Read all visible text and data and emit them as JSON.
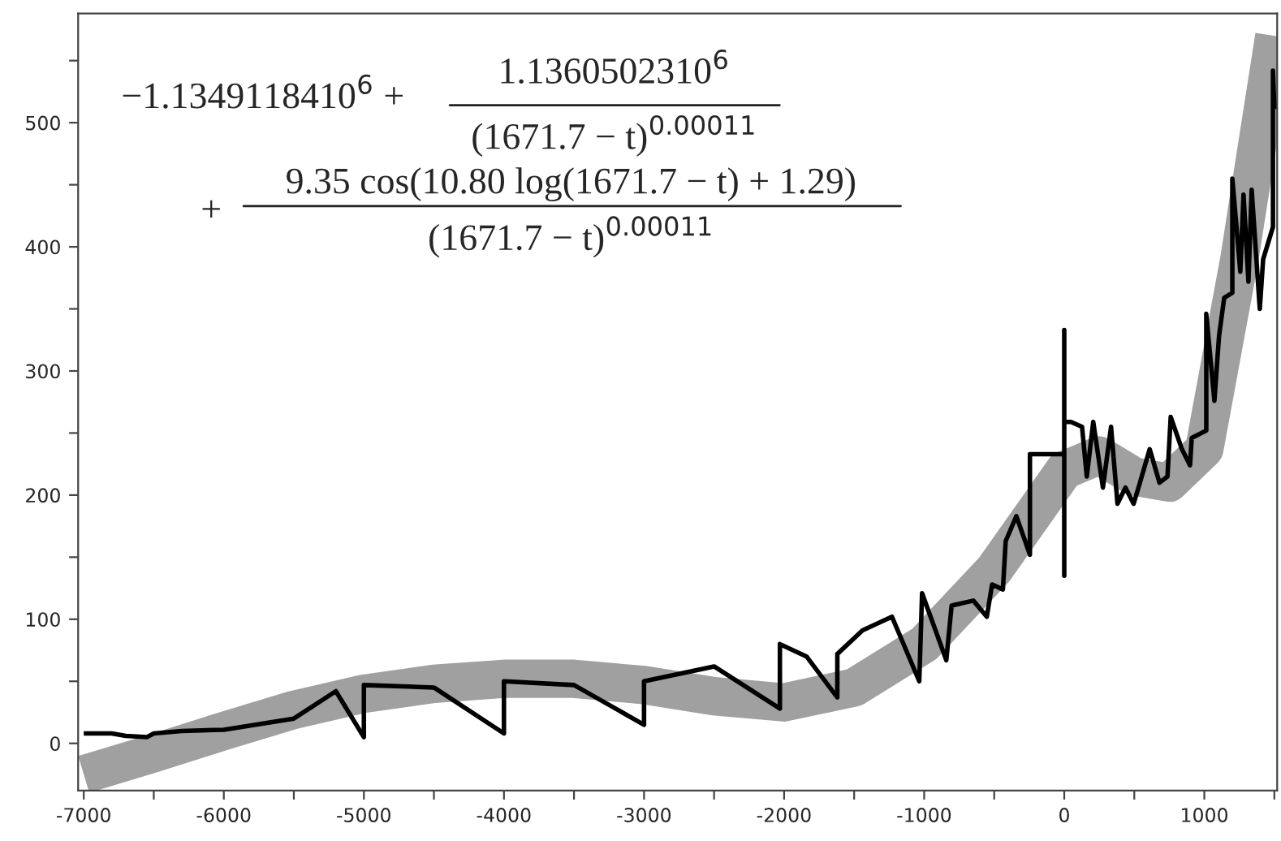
{
  "chart_data": {
    "type": "line",
    "series": [
      {
        "color": "#a0a0a0",
        "x": [
          -7000,
          -6500,
          -6000,
          -5500,
          -5000,
          -4500,
          -4000,
          -3500,
          -3000,
          -2500,
          -2000,
          -1500,
          -1000,
          -500,
          0,
          250,
          500,
          750,
          1000,
          1250,
          1500
        ],
        "values": [
          -25,
          -8,
          10,
          27,
          40,
          48,
          52,
          52,
          47,
          38,
          33,
          45,
          80,
          140,
          220,
          232,
          215,
          210,
          237,
          390,
          570
        ]
      },
      {
        "color": "#000000",
        "x": [
          -7000,
          -6800,
          -6700,
          -6550,
          -6500,
          -6300,
          -6000,
          -5500,
          -5200,
          -5000,
          -5000,
          -4500,
          -4000,
          -4000,
          -3500,
          -3000,
          -3000,
          -2500,
          -2030,
          -2030,
          -1840,
          -1620,
          -1620,
          -1440,
          -1230,
          -1035,
          -1015,
          -842,
          -804,
          -649,
          -553,
          -515,
          -438,
          -418,
          -342,
          -245,
          -245,
          0,
          0,
          0,
          0,
          48,
          127,
          161,
          207,
          276,
          334,
          380,
          437,
          495,
          530,
          610,
          680,
          737,
          760,
          840,
          898,
          910,
          1014,
          1014,
          1072,
          1105,
          1142,
          1200,
          1200,
          1257,
          1280,
          1315,
          1338,
          1396,
          1420,
          1490,
          1490,
          1500
        ],
        "values": [
          8,
          8,
          6,
          5,
          8,
          10,
          11,
          20,
          42,
          5,
          47,
          45,
          8,
          50,
          47,
          15,
          50,
          62,
          28,
          80,
          70,
          37,
          72,
          91,
          102,
          50,
          121,
          67,
          111,
          115,
          102,
          128,
          124,
          163,
          183,
          152,
          233,
          233,
          333,
          135,
          259,
          259,
          255,
          215,
          259,
          206,
          255,
          193,
          206,
          193,
          206,
          237,
          210,
          215,
          263,
          237,
          224,
          246,
          252,
          346,
          276,
          328,
          359,
          363,
          455,
          380,
          442,
          372,
          446,
          350,
          390,
          416,
          542,
          511
        ]
      }
    ],
    "xlim": [
      -7040,
      1520
    ],
    "ylim": [
      -38,
      588
    ],
    "xticks": [
      -7000,
      {
        "value": -6500,
        "label": null
      },
      -6000,
      {
        "value": -5500,
        "label": null
      },
      -5000,
      {
        "value": -4500,
        "label": null
      },
      -4000,
      {
        "value": -3500,
        "label": null
      },
      -3000,
      {
        "value": -2500,
        "label": null
      },
      -2000,
      {
        "value": -1500,
        "label": null
      },
      -1000,
      {
        "value": -500,
        "label": null
      },
      0,
      {
        "value": 500,
        "label": null
      },
      1000,
      {
        "value": 1500,
        "label": null
      }
    ],
    "yticks": [
      0,
      {
        "value": 50,
        "label": null
      },
      100,
      {
        "value": 150,
        "label": null
      },
      200,
      {
        "value": 250,
        "label": null
      },
      300,
      {
        "value": 350,
        "label": null
      },
      400,
      {
        "value": 450,
        "label": null
      },
      500,
      {
        "value": 550,
        "label": null
      }
    ],
    "grid": false,
    "legend": false,
    "annotations": [
      "−1.1349118410$^{6}$ +",
      "1.1360502310$^{6}$",
      "(1671.7 − t)$^{0.00011}$",
      "+",
      "9.35 cos(10.80 log(1671.7 − t) + 1.29)",
      "(1671.7 − t)$^{0.00011}$"
    ]
  }
}
